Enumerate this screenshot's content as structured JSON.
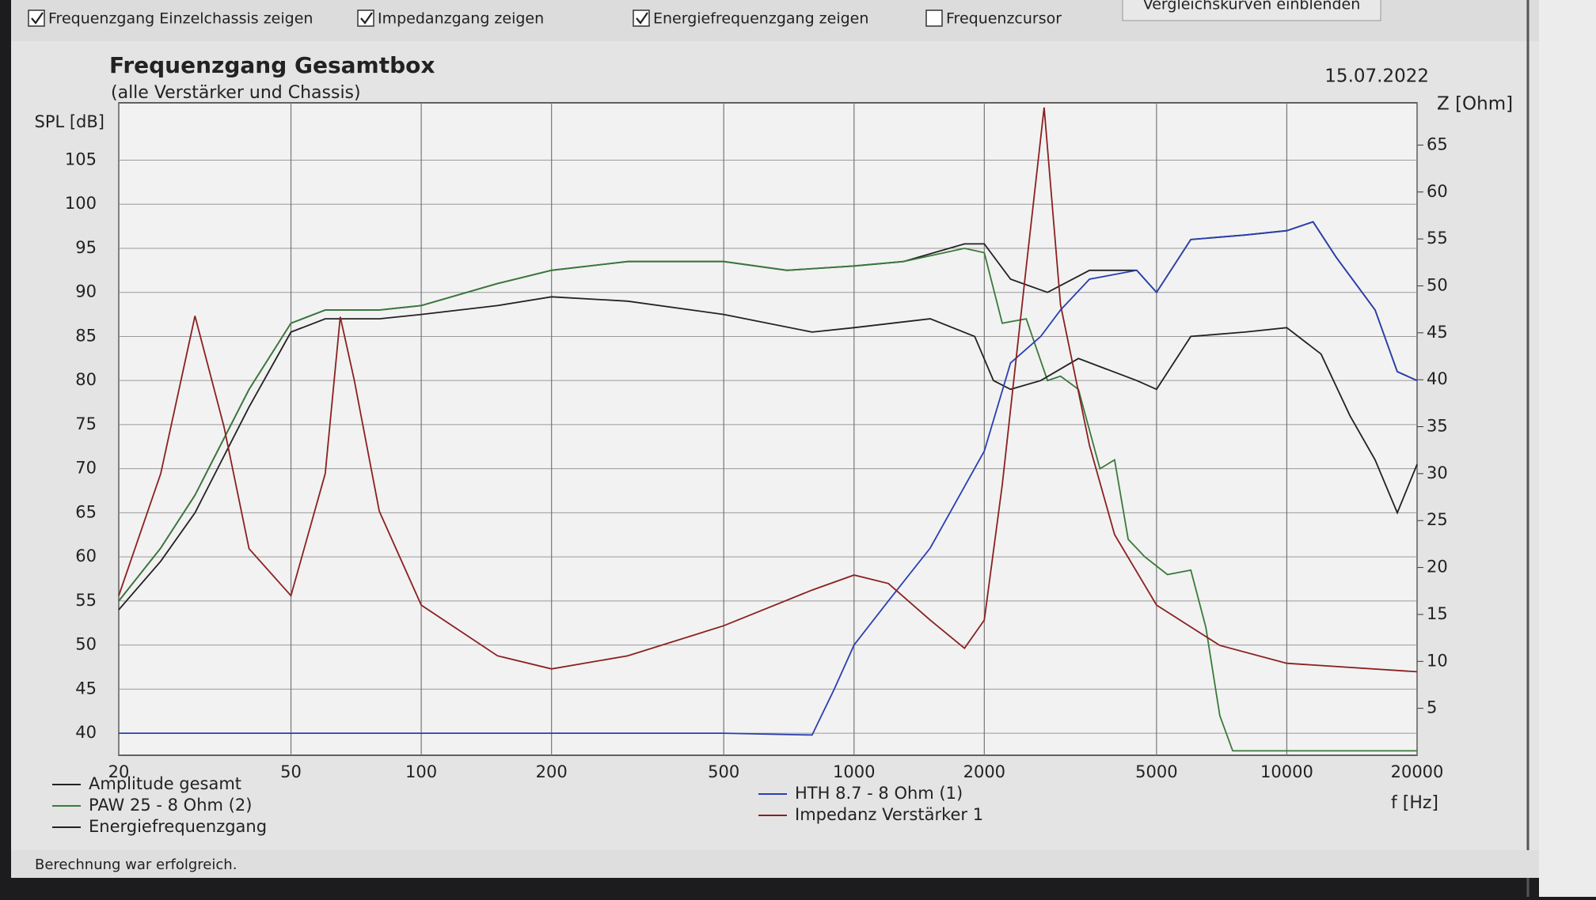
{
  "toolbar": {
    "checkboxes": [
      {
        "label": "Frequenzgang Einzelchassis zeigen",
        "checked": true
      },
      {
        "label": "Impedanzgang zeigen",
        "checked": true
      },
      {
        "label": "Energiefrequenzgang zeigen",
        "checked": true
      },
      {
        "label": "Frequenzcursor",
        "checked": false
      }
    ],
    "button": "Vergleichskurven einblenden"
  },
  "status": "Berechnung war erfolgreich.",
  "chart_data": {
    "type": "line",
    "title": "Frequenzgang Gesamtbox",
    "subtitle": "(alle Verstärker und Chassis)",
    "date": "15.07.2022",
    "ylabel": "SPL [dB]",
    "y2label": "Z [Ohm]",
    "xlabel": "f [Hz]",
    "xscale": "log",
    "xlim": [
      20,
      20000
    ],
    "xticks": [
      20,
      50,
      100,
      200,
      500,
      1000,
      2000,
      5000,
      10000,
      20000
    ],
    "ylim": [
      37.5,
      111.5
    ],
    "yticks": [
      40,
      45,
      50,
      55,
      60,
      65,
      70,
      75,
      80,
      85,
      90,
      95,
      100,
      105
    ],
    "y2lim": [
      0,
      69.5
    ],
    "y2ticks": [
      5,
      10,
      15,
      20,
      25,
      30,
      35,
      40,
      45,
      50,
      55,
      60,
      65
    ],
    "grid": true,
    "series": [
      {
        "name": "Amplitude gesamt",
        "color": "#222222",
        "x": [
          20,
          25,
          30,
          40,
          50,
          60,
          80,
          100,
          150,
          200,
          300,
          500,
          700,
          1000,
          1300,
          1800,
          2000,
          2300,
          2800,
          3500,
          4500,
          5000,
          6000,
          8000,
          10000,
          11500,
          13000,
          16000,
          18000,
          20000
        ],
        "values": [
          55,
          61,
          67,
          79,
          86.5,
          88,
          88,
          88.5,
          91,
          92.5,
          93.5,
          93.5,
          92.5,
          93,
          93.5,
          95.5,
          95.5,
          91.5,
          90,
          92.5,
          92.5,
          90,
          96,
          96.5,
          97,
          98,
          94,
          88,
          81,
          80
        ]
      },
      {
        "name": "PAW 25 - 8 Ohm (2)",
        "color": "#3a7a3a",
        "x": [
          20,
          25,
          30,
          40,
          50,
          60,
          80,
          100,
          150,
          200,
          300,
          500,
          700,
          1000,
          1300,
          1800,
          2000,
          2200,
          2500,
          2800,
          3000,
          3300,
          3700,
          4000,
          4300,
          4700,
          5300,
          6000,
          6500,
          7000,
          7500,
          10000,
          20000
        ],
        "values": [
          55,
          61,
          67,
          79,
          86.5,
          88,
          88,
          88.5,
          91,
          92.5,
          93.5,
          93.5,
          92.5,
          93,
          93.5,
          95,
          94.5,
          86.5,
          87,
          80,
          80.5,
          79,
          70,
          71,
          62,
          60,
          58,
          58.5,
          52,
          42,
          38,
          38,
          38
        ]
      },
      {
        "name": "Energiefrequenzgang",
        "color": "#222222",
        "x": [
          20,
          25,
          30,
          40,
          50,
          60,
          80,
          100,
          150,
          200,
          300,
          500,
          800,
          1000,
          1500,
          1900,
          2100,
          2300,
          2700,
          3300,
          4500,
          5000,
          6000,
          8000,
          10000,
          12000,
          14000,
          16000,
          18000,
          20000
        ],
        "values": [
          54,
          59.5,
          65,
          77,
          85.5,
          87,
          87,
          87.5,
          88.5,
          89.5,
          89,
          87.5,
          85.5,
          86,
          87,
          85,
          80,
          79,
          80,
          82.5,
          80,
          79,
          85,
          85.5,
          86,
          83,
          76,
          71,
          65,
          70.5
        ]
      },
      {
        "name": "HTH 8.7 - 8 Ohm (1)",
        "color": "#2a3fb0",
        "x": [
          20,
          100,
          500,
          800,
          900,
          1000,
          1200,
          1500,
          2000,
          2300,
          2700,
          3000,
          3500,
          4500,
          5000,
          6000,
          8000,
          10000,
          11500,
          13000,
          16000,
          18000,
          20000
        ],
        "values": [
          40,
          40,
          40,
          39.8,
          45,
          50,
          55,
          61,
          72,
          82,
          85,
          88,
          91.5,
          92.5,
          90,
          96,
          96.5,
          97,
          98,
          94,
          88,
          81,
          80
        ]
      },
      {
        "name": "Impedanz Verstärker 1",
        "color": "#8b2020",
        "axis": "y2",
        "x": [
          20,
          25,
          30,
          35,
          40,
          50,
          60,
          65,
          70,
          80,
          100,
          150,
          200,
          300,
          500,
          800,
          1000,
          1200,
          1500,
          1800,
          2000,
          2200,
          2500,
          2750,
          3000,
          3500,
          4000,
          5000,
          7000,
          10000,
          20000
        ],
        "values": [
          17,
          30,
          46.8,
          35,
          22,
          17,
          30,
          46.7,
          40,
          26,
          16,
          10.6,
          9.2,
          10.6,
          13.8,
          17.6,
          19.2,
          18.3,
          14.4,
          11.4,
          14.4,
          28.8,
          52,
          69,
          48,
          33,
          23.5,
          16,
          11.7,
          9.8,
          8.9
        ]
      }
    ]
  }
}
